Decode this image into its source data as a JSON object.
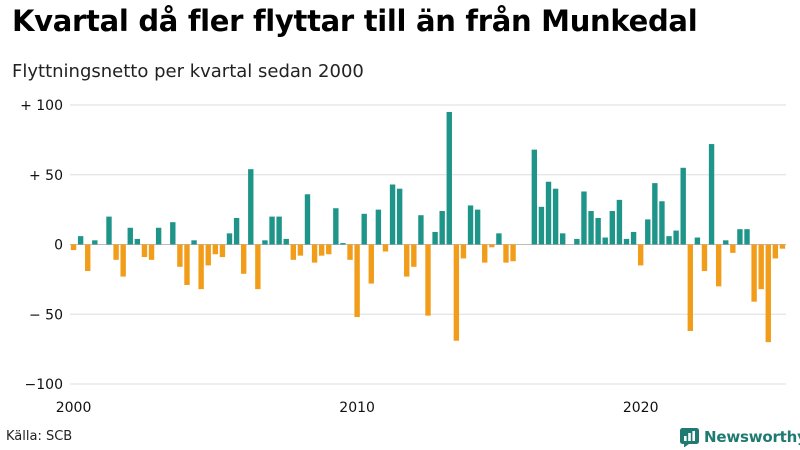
{
  "title": "Kvartal då fler flyttar till än från Munkedal",
  "subtitle": "Flyttningsnetto per kvartal sedan 2000",
  "source": "Källa: SCB",
  "brand": "Newsworthy",
  "brand_icon": "bar-chart-logo-icon",
  "colors": {
    "positive": "#1f958a",
    "negative": "#f29d1a",
    "brand": "#1f7a72"
  },
  "chart_data": {
    "type": "bar",
    "title": "Kvartal då fler flyttar till än från Munkedal",
    "subtitle": "Flyttningsnetto per kvartal sedan 2000",
    "start": "2000-Q1",
    "xticks": [
      {
        "label": "2000",
        "year": 2000
      },
      {
        "label": "2010",
        "year": 2010
      },
      {
        "label": "2020",
        "year": 2020
      }
    ],
    "yticks": [
      {
        "label": "+ 100",
        "value": 100
      },
      {
        "label": "+  50",
        "value": 50
      },
      {
        "label": "0",
        "value": 0
      },
      {
        "label": "− 50",
        "value": -50
      },
      {
        "label": "−100",
        "value": -100
      }
    ],
    "ylim": [
      -100,
      100
    ],
    "grid": true,
    "values": [
      -4,
      6,
      -19,
      3,
      0,
      20,
      -11,
      -23,
      12,
      4,
      -9,
      -11,
      12,
      0,
      16,
      -16,
      -29,
      3,
      -32,
      -15,
      -7,
      -9,
      8,
      19,
      -21,
      54,
      -32,
      3,
      20,
      20,
      4,
      -11,
      -8,
      36,
      -13,
      -8,
      -7,
      26,
      1,
      -11,
      -52,
      22,
      -28,
      25,
      -5,
      43,
      40,
      -23,
      -16,
      21,
      -51,
      9,
      24,
      95,
      -69,
      -10,
      28,
      25,
      -13,
      -2,
      8,
      -13,
      -12,
      0,
      0,
      68,
      27,
      45,
      40,
      8,
      0,
      4,
      38,
      24,
      19,
      5,
      24,
      32,
      4,
      9,
      -15,
      18,
      44,
      31,
      6,
      10,
      55,
      -62,
      5,
      -19,
      72,
      -30,
      3,
      -6,
      11,
      11,
      -41,
      -32,
      -70,
      -10,
      -3
    ]
  }
}
